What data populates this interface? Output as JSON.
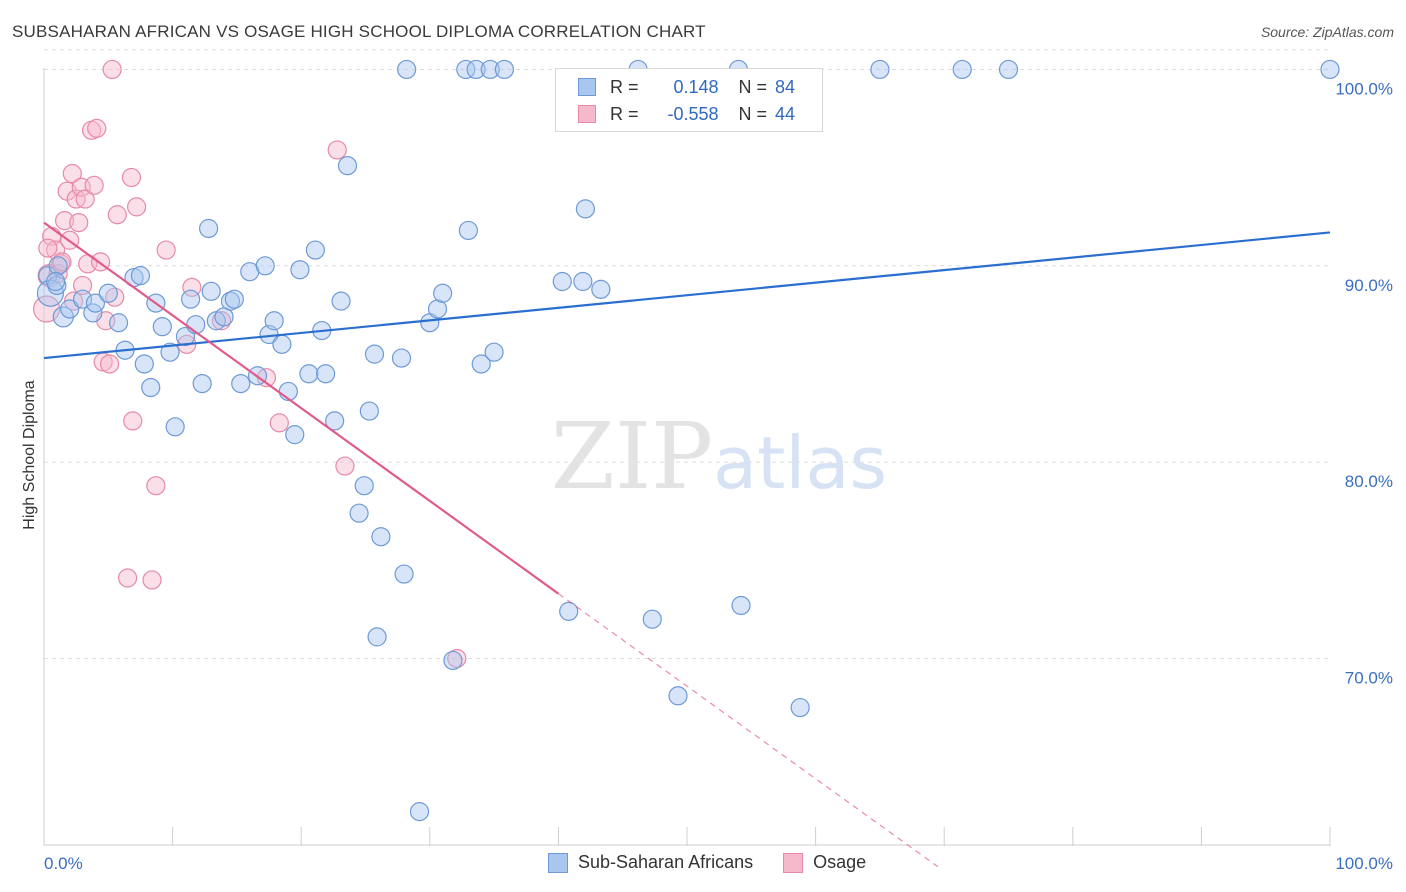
{
  "title": "SUBSAHARAN AFRICAN VS OSAGE HIGH SCHOOL DIPLOMA CORRELATION CHART",
  "source": "Source: ZipAtlas.com",
  "watermark_zip": "ZIP",
  "watermark_atlas": "atlas",
  "colors": {
    "blue_fill": "#a9c6ef",
    "blue_stroke": "#6e9ad6",
    "blue_line": "#2a6fd0",
    "pink_fill": "#f6b8cb",
    "pink_stroke": "#e68aa8",
    "pink_line": "#e05a8a",
    "grid": "#dddddd",
    "axis_text": "#3a6fc0"
  },
  "legend": {
    "r_label": "R =",
    "n_label": "N =",
    "series": [
      {
        "name": "Sub-Saharan Africans",
        "r": "0.148",
        "n": "84"
      },
      {
        "name": "Osage",
        "r": "-0.558",
        "n": "44"
      }
    ]
  },
  "chart_data": {
    "type": "scatter",
    "title": "SUBSAHARAN AFRICAN VS OSAGE HIGH SCHOOL DIPLOMA CORRELATION CHART",
    "xlabel": "",
    "ylabel": "High School Diploma",
    "xlim": [
      0,
      100
    ],
    "ylim": [
      60.5,
      101.5
    ],
    "x_tick_labels": [
      "0.0%",
      "100.0%"
    ],
    "y_ticks": [
      70,
      80,
      90,
      100
    ],
    "y_tick_labels": [
      "70.0%",
      "80.0%",
      "90.0%",
      "100.0%"
    ],
    "series": [
      {
        "name": "Sub-Saharan Africans",
        "trend": {
          "x": [
            0,
            100
          ],
          "y": [
            85.3,
            91.7
          ],
          "dashed_from": null
        },
        "points": [
          [
            0.3,
            89.5
          ],
          [
            0.5,
            88.6
          ],
          [
            1,
            89.0
          ],
          [
            1.5,
            87.4
          ],
          [
            2,
            87.8
          ],
          [
            3,
            88.3
          ],
          [
            3.8,
            87.6
          ],
          [
            4,
            88.1
          ],
          [
            5,
            88.6
          ],
          [
            5.8,
            87.1
          ],
          [
            6.3,
            85.7
          ],
          [
            7,
            89.4
          ],
          [
            7.5,
            89.5
          ],
          [
            7.8,
            85.0
          ],
          [
            8.3,
            83.8
          ],
          [
            8.7,
            88.1
          ],
          [
            9.2,
            86.9
          ],
          [
            9.8,
            85.6
          ],
          [
            10.2,
            81.8
          ],
          [
            11,
            86.4
          ],
          [
            11.4,
            88.3
          ],
          [
            11.8,
            87.0
          ],
          [
            12.3,
            84.0
          ],
          [
            12.8,
            91.9
          ],
          [
            13.4,
            87.2
          ],
          [
            14,
            87.4
          ],
          [
            14.5,
            88.2
          ],
          [
            14.8,
            88.3
          ],
          [
            15.3,
            84.0
          ],
          [
            16,
            89.7
          ],
          [
            16.6,
            84.4
          ],
          [
            17.2,
            90.0
          ],
          [
            17.5,
            86.5
          ],
          [
            17.9,
            87.2
          ],
          [
            18.5,
            86.0
          ],
          [
            19,
            83.6
          ],
          [
            19.5,
            81.4
          ],
          [
            19.9,
            89.8
          ],
          [
            20.6,
            84.5
          ],
          [
            21.1,
            90.8
          ],
          [
            21.6,
            86.7
          ],
          [
            21.9,
            84.5
          ],
          [
            22.6,
            82.1
          ],
          [
            23.1,
            88.2
          ],
          [
            23.6,
            95.1
          ],
          [
            24.5,
            77.4
          ],
          [
            24.9,
            78.8
          ],
          [
            25.3,
            82.6
          ],
          [
            25.7,
            85.5
          ],
          [
            25.9,
            71.1
          ],
          [
            26.2,
            76.2
          ],
          [
            27.8,
            85.3
          ],
          [
            28,
            74.3
          ],
          [
            28.2,
            100.0
          ],
          [
            29.2,
            62.2
          ],
          [
            30,
            87.1
          ],
          [
            30.6,
            87.8
          ],
          [
            31,
            88.6
          ],
          [
            31.8,
            69.9
          ],
          [
            32.8,
            100.0
          ],
          [
            33,
            91.8
          ],
          [
            33.6,
            100.0
          ],
          [
            34,
            85.0
          ],
          [
            34.7,
            100.0
          ],
          [
            35,
            85.6
          ],
          [
            35.8,
            100.0
          ],
          [
            40.3,
            89.2
          ],
          [
            40.8,
            72.4
          ],
          [
            41.9,
            89.2
          ],
          [
            42.1,
            92.9
          ],
          [
            43.3,
            88.8
          ],
          [
            46.2,
            100.0
          ],
          [
            47.3,
            72.0
          ],
          [
            49.3,
            68.1
          ],
          [
            54,
            100.0
          ],
          [
            54.2,
            72.7
          ],
          [
            58.8,
            67.5
          ],
          [
            65,
            100.0
          ],
          [
            71.4,
            100.0
          ],
          [
            75,
            100.0
          ],
          [
            100,
            100.0
          ],
          [
            1.1,
            90.0
          ],
          [
            13.0,
            88.7
          ],
          [
            0.9,
            89.2
          ]
        ]
      },
      {
        "name": "Osage",
        "trend": {
          "x": [
            0,
            40
          ],
          "y": [
            92.2,
            73.3
          ],
          "dashed_to": [
            69.5,
            59.4
          ]
        },
        "points": [
          [
            0.2,
            87.8
          ],
          [
            0.4,
            89.5
          ],
          [
            0.6,
            91.5
          ],
          [
            0.9,
            90.8
          ],
          [
            1.1,
            89.6
          ],
          [
            1.3,
            90.1
          ],
          [
            1.6,
            92.3
          ],
          [
            1.8,
            93.8
          ],
          [
            2.0,
            91.3
          ],
          [
            2.2,
            94.7
          ],
          [
            2.3,
            88.2
          ],
          [
            2.5,
            93.4
          ],
          [
            2.7,
            92.2
          ],
          [
            2.9,
            94.0
          ],
          [
            3.2,
            93.4
          ],
          [
            3.4,
            90.1
          ],
          [
            3.7,
            96.9
          ],
          [
            3.9,
            94.1
          ],
          [
            4.1,
            97.0
          ],
          [
            4.4,
            90.2
          ],
          [
            4.6,
            85.1
          ],
          [
            4.8,
            87.2
          ],
          [
            5.1,
            85.0
          ],
          [
            5.3,
            100.0
          ],
          [
            5.5,
            88.4
          ],
          [
            5.7,
            92.6
          ],
          [
            6.5,
            74.1
          ],
          [
            6.8,
            94.5
          ],
          [
            6.9,
            82.1
          ],
          [
            7.2,
            93.0
          ],
          [
            8.4,
            74.0
          ],
          [
            8.7,
            78.8
          ],
          [
            9.5,
            90.8
          ],
          [
            11.1,
            86.0
          ],
          [
            11.5,
            88.9
          ],
          [
            13.8,
            87.2
          ],
          [
            17.3,
            84.3
          ],
          [
            18.3,
            82.0
          ],
          [
            22.8,
            95.9
          ],
          [
            23.4,
            79.8
          ],
          [
            32.1,
            70.0
          ],
          [
            0.3,
            90.9
          ],
          [
            1.4,
            90.2
          ],
          [
            3.0,
            89.0
          ]
        ]
      }
    ]
  }
}
